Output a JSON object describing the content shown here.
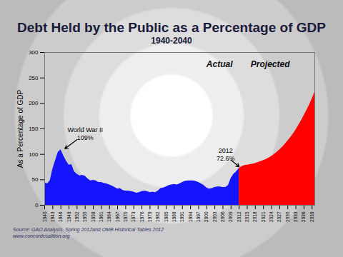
{
  "chart_data": {
    "type": "area",
    "title": "Debt Held by the Public as a Percentage of GDP",
    "subtitle": "1940-2040",
    "y_label": "As a Percentage of GDP",
    "caption": [
      "Source: GAO Analysis, Spring 2012and OMB Historical Tables 2012",
      "www.concordcoalition.org"
    ],
    "x": [
      1940,
      1941,
      1942,
      1943,
      1944,
      1945,
      1946,
      1947,
      1948,
      1949,
      1950,
      1951,
      1952,
      1953,
      1954,
      1955,
      1956,
      1957,
      1958,
      1959,
      1960,
      1961,
      1962,
      1963,
      1964,
      1965,
      1966,
      1967,
      1968,
      1969,
      1970,
      1971,
      1972,
      1973,
      1974,
      1975,
      1976,
      1977,
      1978,
      1979,
      1980,
      1981,
      1982,
      1983,
      1984,
      1985,
      1986,
      1987,
      1988,
      1989,
      1990,
      1991,
      1992,
      1993,
      1994,
      1995,
      1996,
      1997,
      1998,
      1999,
      2000,
      2001,
      2002,
      2003,
      2004,
      2005,
      2006,
      2007,
      2008,
      2009,
      2010,
      2011,
      2012,
      2013,
      2014,
      2015,
      2016,
      2017,
      2018,
      2019,
      2020,
      2021,
      2022,
      2023,
      2024,
      2025,
      2026,
      2027,
      2028,
      2029,
      2030,
      2031,
      2032,
      2033,
      2034,
      2035,
      2036,
      2037,
      2038,
      2039,
      2040
    ],
    "series": [
      {
        "name": "Actual",
        "color": "#1414ff",
        "values": [
          44,
          42,
          48,
          71,
          88,
          104,
          109,
          97,
          87,
          79,
          80,
          66,
          61,
          58,
          59,
          57,
          52,
          48,
          49,
          48,
          45,
          45,
          43,
          42,
          40,
          38,
          35,
          32,
          33,
          29,
          28,
          28,
          27,
          26,
          24,
          25,
          27,
          28,
          27,
          25,
          26,
          25,
          28,
          33,
          34,
          36,
          39,
          40,
          41,
          40,
          42,
          45,
          47,
          48,
          48,
          48,
          47,
          45,
          42,
          39,
          34,
          32,
          33,
          35,
          36,
          36,
          35,
          35,
          39,
          53,
          61,
          66,
          72.6,
          null,
          null,
          null,
          null,
          null,
          null,
          null,
          null,
          null,
          null,
          null,
          null,
          null,
          null,
          null,
          null,
          null,
          null,
          null,
          null,
          null,
          null,
          null,
          null,
          null,
          null,
          null,
          null
        ]
      },
      {
        "name": "Projected",
        "color": "#ff0000",
        "values": [
          null,
          null,
          null,
          null,
          null,
          null,
          null,
          null,
          null,
          null,
          null,
          null,
          null,
          null,
          null,
          null,
          null,
          null,
          null,
          null,
          null,
          null,
          null,
          null,
          null,
          null,
          null,
          null,
          null,
          null,
          null,
          null,
          null,
          null,
          null,
          null,
          null,
          null,
          null,
          null,
          null,
          null,
          null,
          null,
          null,
          null,
          null,
          null,
          null,
          null,
          null,
          null,
          null,
          null,
          null,
          null,
          null,
          null,
          null,
          null,
          null,
          null,
          null,
          null,
          null,
          null,
          null,
          null,
          null,
          null,
          null,
          null,
          72.6,
          76,
          78,
          79,
          80,
          81,
          82,
          84,
          86,
          88,
          90,
          93,
          96,
          100,
          104,
          109,
          114,
          120,
          126,
          133,
          140,
          148,
          157,
          166,
          176,
          186,
          197,
          209,
          222
        ]
      }
    ],
    "annotations": [
      {
        "text": "World War II",
        "value_label": "109%",
        "x": 1946,
        "y": 109
      },
      {
        "text": "2012",
        "value_label": "72.6%",
        "x": 2012,
        "y": 72.6
      }
    ],
    "xlim": [
      1940,
      2040
    ],
    "xticks": [
      1940,
      1943,
      1946,
      1949,
      1952,
      1955,
      1958,
      1961,
      1964,
      1967,
      1970,
      1973,
      1976,
      1979,
      1982,
      1985,
      1988,
      1991,
      1994,
      1997,
      2000,
      2003,
      2006,
      2009,
      2012,
      2015,
      2018,
      2021,
      2024,
      2027,
      2030,
      2033,
      2036,
      2039
    ],
    "ylim": [
      0,
      300
    ],
    "yticks": [
      0,
      50,
      100,
      150,
      200,
      250,
      300
    ],
    "grid": false
  }
}
